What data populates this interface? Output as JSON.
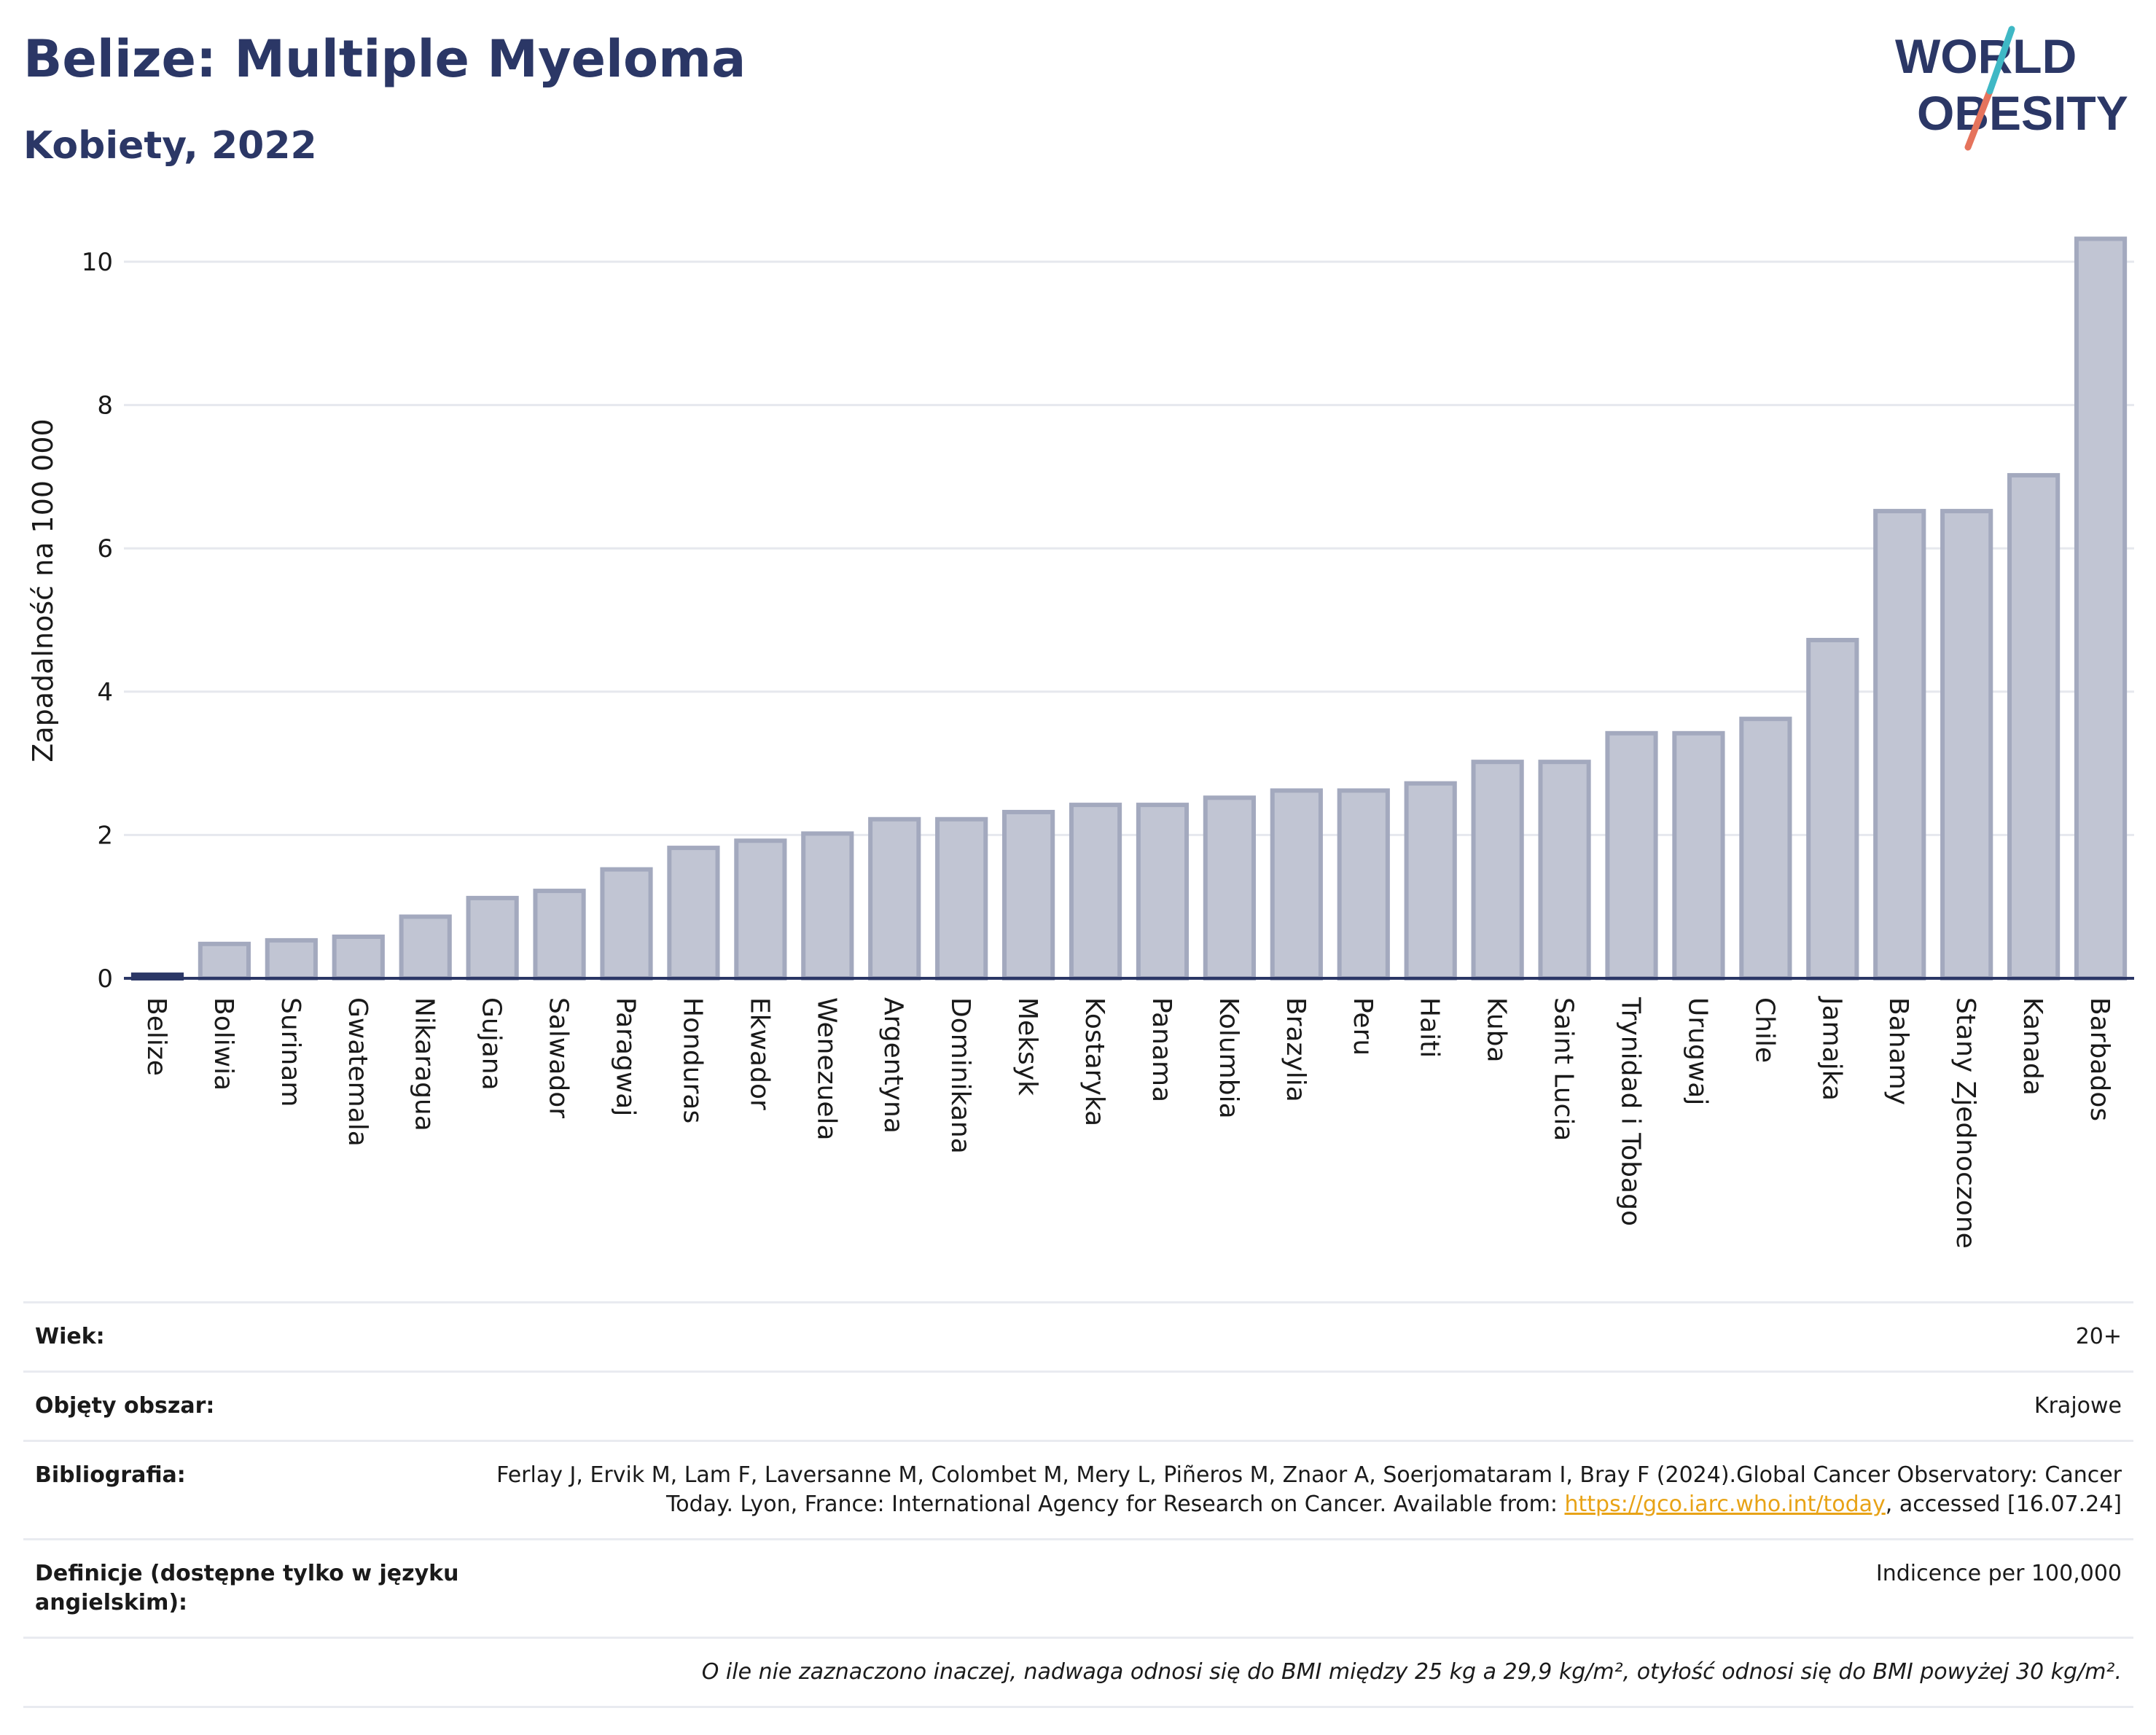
{
  "header": {
    "title": "Belize: Multiple Myeloma",
    "subtitle": "Kobiety, 2022",
    "logo_line1": "WORLD",
    "logo_line2": "OBESITY"
  },
  "chart_data": {
    "type": "bar",
    "ylabel": "Zapadalność na 100 000",
    "ylim": [
      0,
      10.5
    ],
    "yticks": [
      0,
      2,
      4,
      6,
      8,
      10
    ],
    "grid": true,
    "highlight": "Belize",
    "categories": [
      "Belize",
      "Boliwia",
      "Surinam",
      "Gwatemala",
      "Nikaragua",
      "Gujana",
      "Salwador",
      "Paragwaj",
      "Honduras",
      "Ekwador",
      "Wenezuela",
      "Argentyna",
      "Dominikana",
      "Meksyk",
      "Kostaryka",
      "Panama",
      "Kolumbia",
      "Brazylia",
      "Peru",
      "Haiti",
      "Kuba",
      "Saint Lucia",
      "Trynidad i Tobago",
      "Urugwaj",
      "Chile",
      "Jamajka",
      "Bahamy",
      "Stany Zjednoczone",
      "Kanada",
      "Barbados"
    ],
    "values": [
      0.05,
      0.48,
      0.53,
      0.58,
      0.86,
      1.12,
      1.22,
      1.52,
      1.82,
      1.92,
      2.02,
      2.22,
      2.22,
      2.32,
      2.42,
      2.42,
      2.52,
      2.62,
      2.62,
      2.72,
      3.02,
      3.02,
      3.42,
      3.42,
      3.62,
      4.72,
      6.52,
      6.52,
      7.02,
      10.32
    ],
    "colors": {
      "bar": "#c1c5d3",
      "bar_border": "#a3a9be",
      "highlight": "#2b3766",
      "axis": "#2b3766",
      "grid": "#e6e8ee"
    }
  },
  "meta": {
    "age_label": "Wiek:",
    "age_value": "20+",
    "area_label": "Objęty obszar:",
    "area_value": "Krajowe",
    "bib_label": "Bibliografia:",
    "bib_text1": "Ferlay J, Ervik M, Lam F, Laversanne M, Colombet M, Mery L, Piñeros M, Znaor A, Soerjomataram I, Bray F (2024).Global Cancer Observatory: Cancer Today. Lyon, France: International Agency for Research on Cancer. Available from: ",
    "bib_link": "https://gco.iarc.who.int/today",
    "bib_text2": ", accessed [16.07.24]",
    "def_label": "Definicje (dostępne tylko w języku angielskim):",
    "def_value": "Indicence per 100,000",
    "note": "O ile nie zaznaczono inaczej, nadwaga odnosi się do BMI między 25 kg a 29,9 kg/m², otyłość odnosi się do BMI powyżej 30 kg/m²."
  }
}
